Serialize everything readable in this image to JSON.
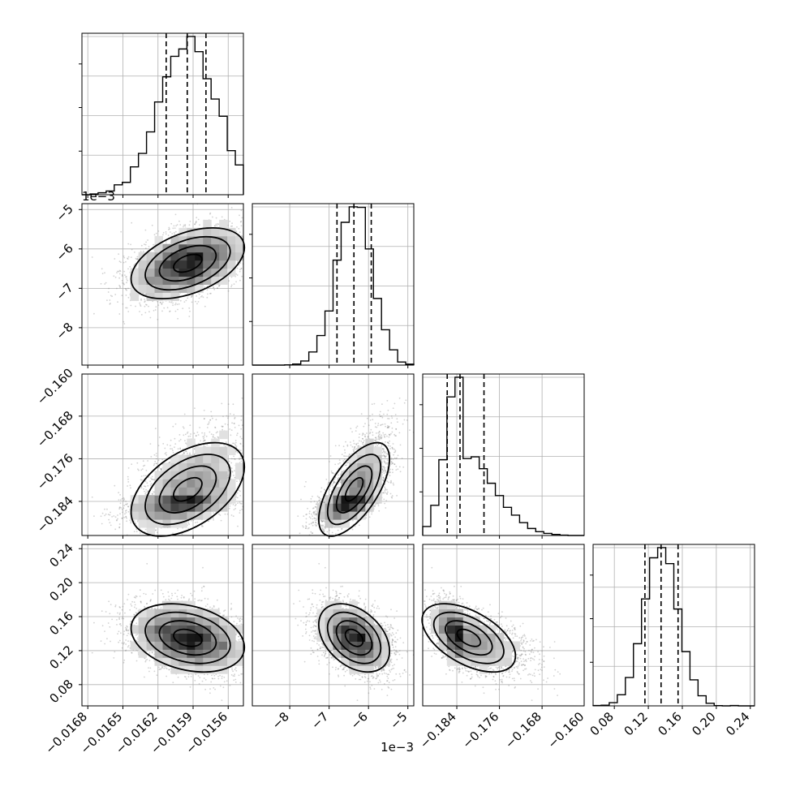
{
  "chart_data": {
    "type": "corner",
    "parameters": [
      {
        "index": 0,
        "lim": [
          -0.01685,
          -0.01547
        ],
        "ticks": [
          -0.0168,
          -0.0165,
          -0.0162,
          -0.0159,
          -0.0156
        ],
        "tick_labels": [
          "−0.0168",
          "−0.0165",
          "−0.0162",
          "−0.0159",
          "−0.0156"
        ],
        "quantiles": [
          -0.01613,
          -0.01595,
          -0.01579
        ],
        "mean": -0.01595,
        "sd": 0.00024,
        "skew": 0
      },
      {
        "index": 1,
        "lim": [
          -8.95,
          -4.85
        ],
        "ticks": [
          -8,
          -7,
          -6,
          -5
        ],
        "tick_labels": [
          "−8",
          "−7",
          "−6",
          "−5"
        ],
        "offset_label": "1e−3",
        "quantiles": [
          -6.8,
          -6.37,
          -5.93
        ],
        "mean": -6.37,
        "sd": 0.45,
        "skew": 0
      },
      {
        "index": 2,
        "lim": [
          -0.1904,
          -0.1601
        ],
        "ticks": [
          -0.16,
          -0.168,
          -0.176,
          -0.184
        ],
        "tick_labels": [
          "−0.160",
          "−0.168",
          "−0.176",
          "−0.184"
        ],
        "quantiles": [
          -0.1858,
          -0.1834,
          -0.1789
        ],
        "mean": -0.1832,
        "sd": 0.0036,
        "skew": 1.2
      },
      {
        "index": 3,
        "lim": [
          0.055,
          0.245
        ],
        "ticks": [
          0.08,
          0.12,
          0.16,
          0.2,
          0.24
        ],
        "tick_labels": [
          "0.08",
          "0.12",
          "0.16",
          "0.20",
          "0.24"
        ],
        "quantiles": [
          0.116,
          0.135,
          0.155
        ],
        "mean": 0.135,
        "sd": 0.02,
        "skew": 0
      }
    ],
    "correlations": [
      [
        0,
        1,
        0.45
      ],
      [
        0,
        2,
        0.72
      ],
      [
        1,
        2,
        0.72
      ],
      [
        0,
        3,
        -0.45
      ],
      [
        1,
        3,
        -0.45
      ],
      [
        2,
        3,
        -0.6
      ]
    ],
    "colors": {
      "line": "#000000",
      "grid": "#b0b0b0",
      "scatter": "#7f7f7f"
    },
    "grid": true
  }
}
